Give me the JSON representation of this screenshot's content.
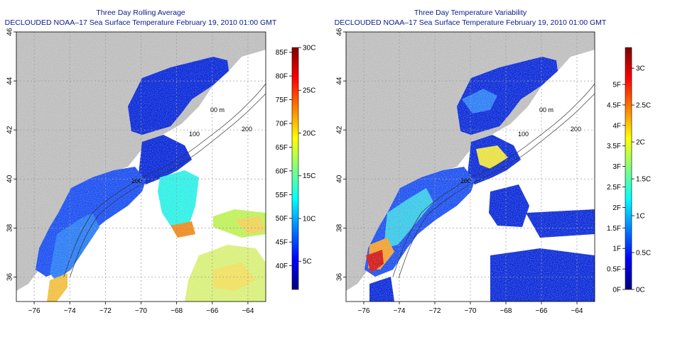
{
  "colors": {
    "land": "#bdbdbd",
    "water": "#ffffff",
    "title": "#0a1a8c",
    "grid": "#9a9a9a"
  },
  "panels": [
    {
      "title_line1": "Three Day Rolling Average",
      "title_line2": "DECLOUDED NOAA–17 Sea Surface Temperature February 19, 2010 01:00 GMT",
      "lon_ticks": [
        "−76",
        "−74",
        "−72",
        "−70",
        "−68",
        "−66",
        "−64"
      ],
      "lat_ticks": [
        "36",
        "38",
        "40",
        "42",
        "44",
        "46"
      ],
      "contour_labels": [
        "00 m",
        "200",
        "100",
        "200"
      ],
      "colorbar": {
        "left_labels": [
          "40F",
          "45F",
          "50F",
          "55F",
          "60F",
          "65F",
          "70F",
          "75F",
          "80F",
          "85F"
        ],
        "right_labels": [
          "5C",
          "10C",
          "15C",
          "20C",
          "25C",
          "30C"
        ],
        "range_f": [
          35,
          86
        ],
        "range_c": [
          1.7,
          30
        ]
      }
    },
    {
      "title_line1": "Three Day Temperature Variability",
      "title_line2": "DECLOUDED NOAA–17 Sea Surface Temperature February 19, 2010 01:00 GMT",
      "lon_ticks": [
        "−76",
        "−74",
        "−72",
        "−70",
        "−68",
        "−66",
        "−64"
      ],
      "lat_ticks": [
        "36",
        "38",
        "40",
        "42",
        "44",
        "46"
      ],
      "contour_labels": [
        "00 m",
        "200",
        "100",
        "200"
      ],
      "colorbar": {
        "left_labels": [
          "0F",
          "0.5F",
          "1F",
          "1.5F",
          "2F",
          "2.5F",
          "3F",
          "3.5F",
          "4F",
          "4.5F",
          "5F"
        ],
        "right_labels": [
          "0C",
          "0.5C",
          "1C",
          "1.5C",
          "2C",
          "2.5C",
          "3C"
        ],
        "range_f": [
          0,
          5.9
        ],
        "range_c": [
          0,
          3.28
        ]
      }
    }
  ],
  "map_extent": {
    "lon": [
      -77,
      -63
    ],
    "lat": [
      35,
      46
    ]
  }
}
